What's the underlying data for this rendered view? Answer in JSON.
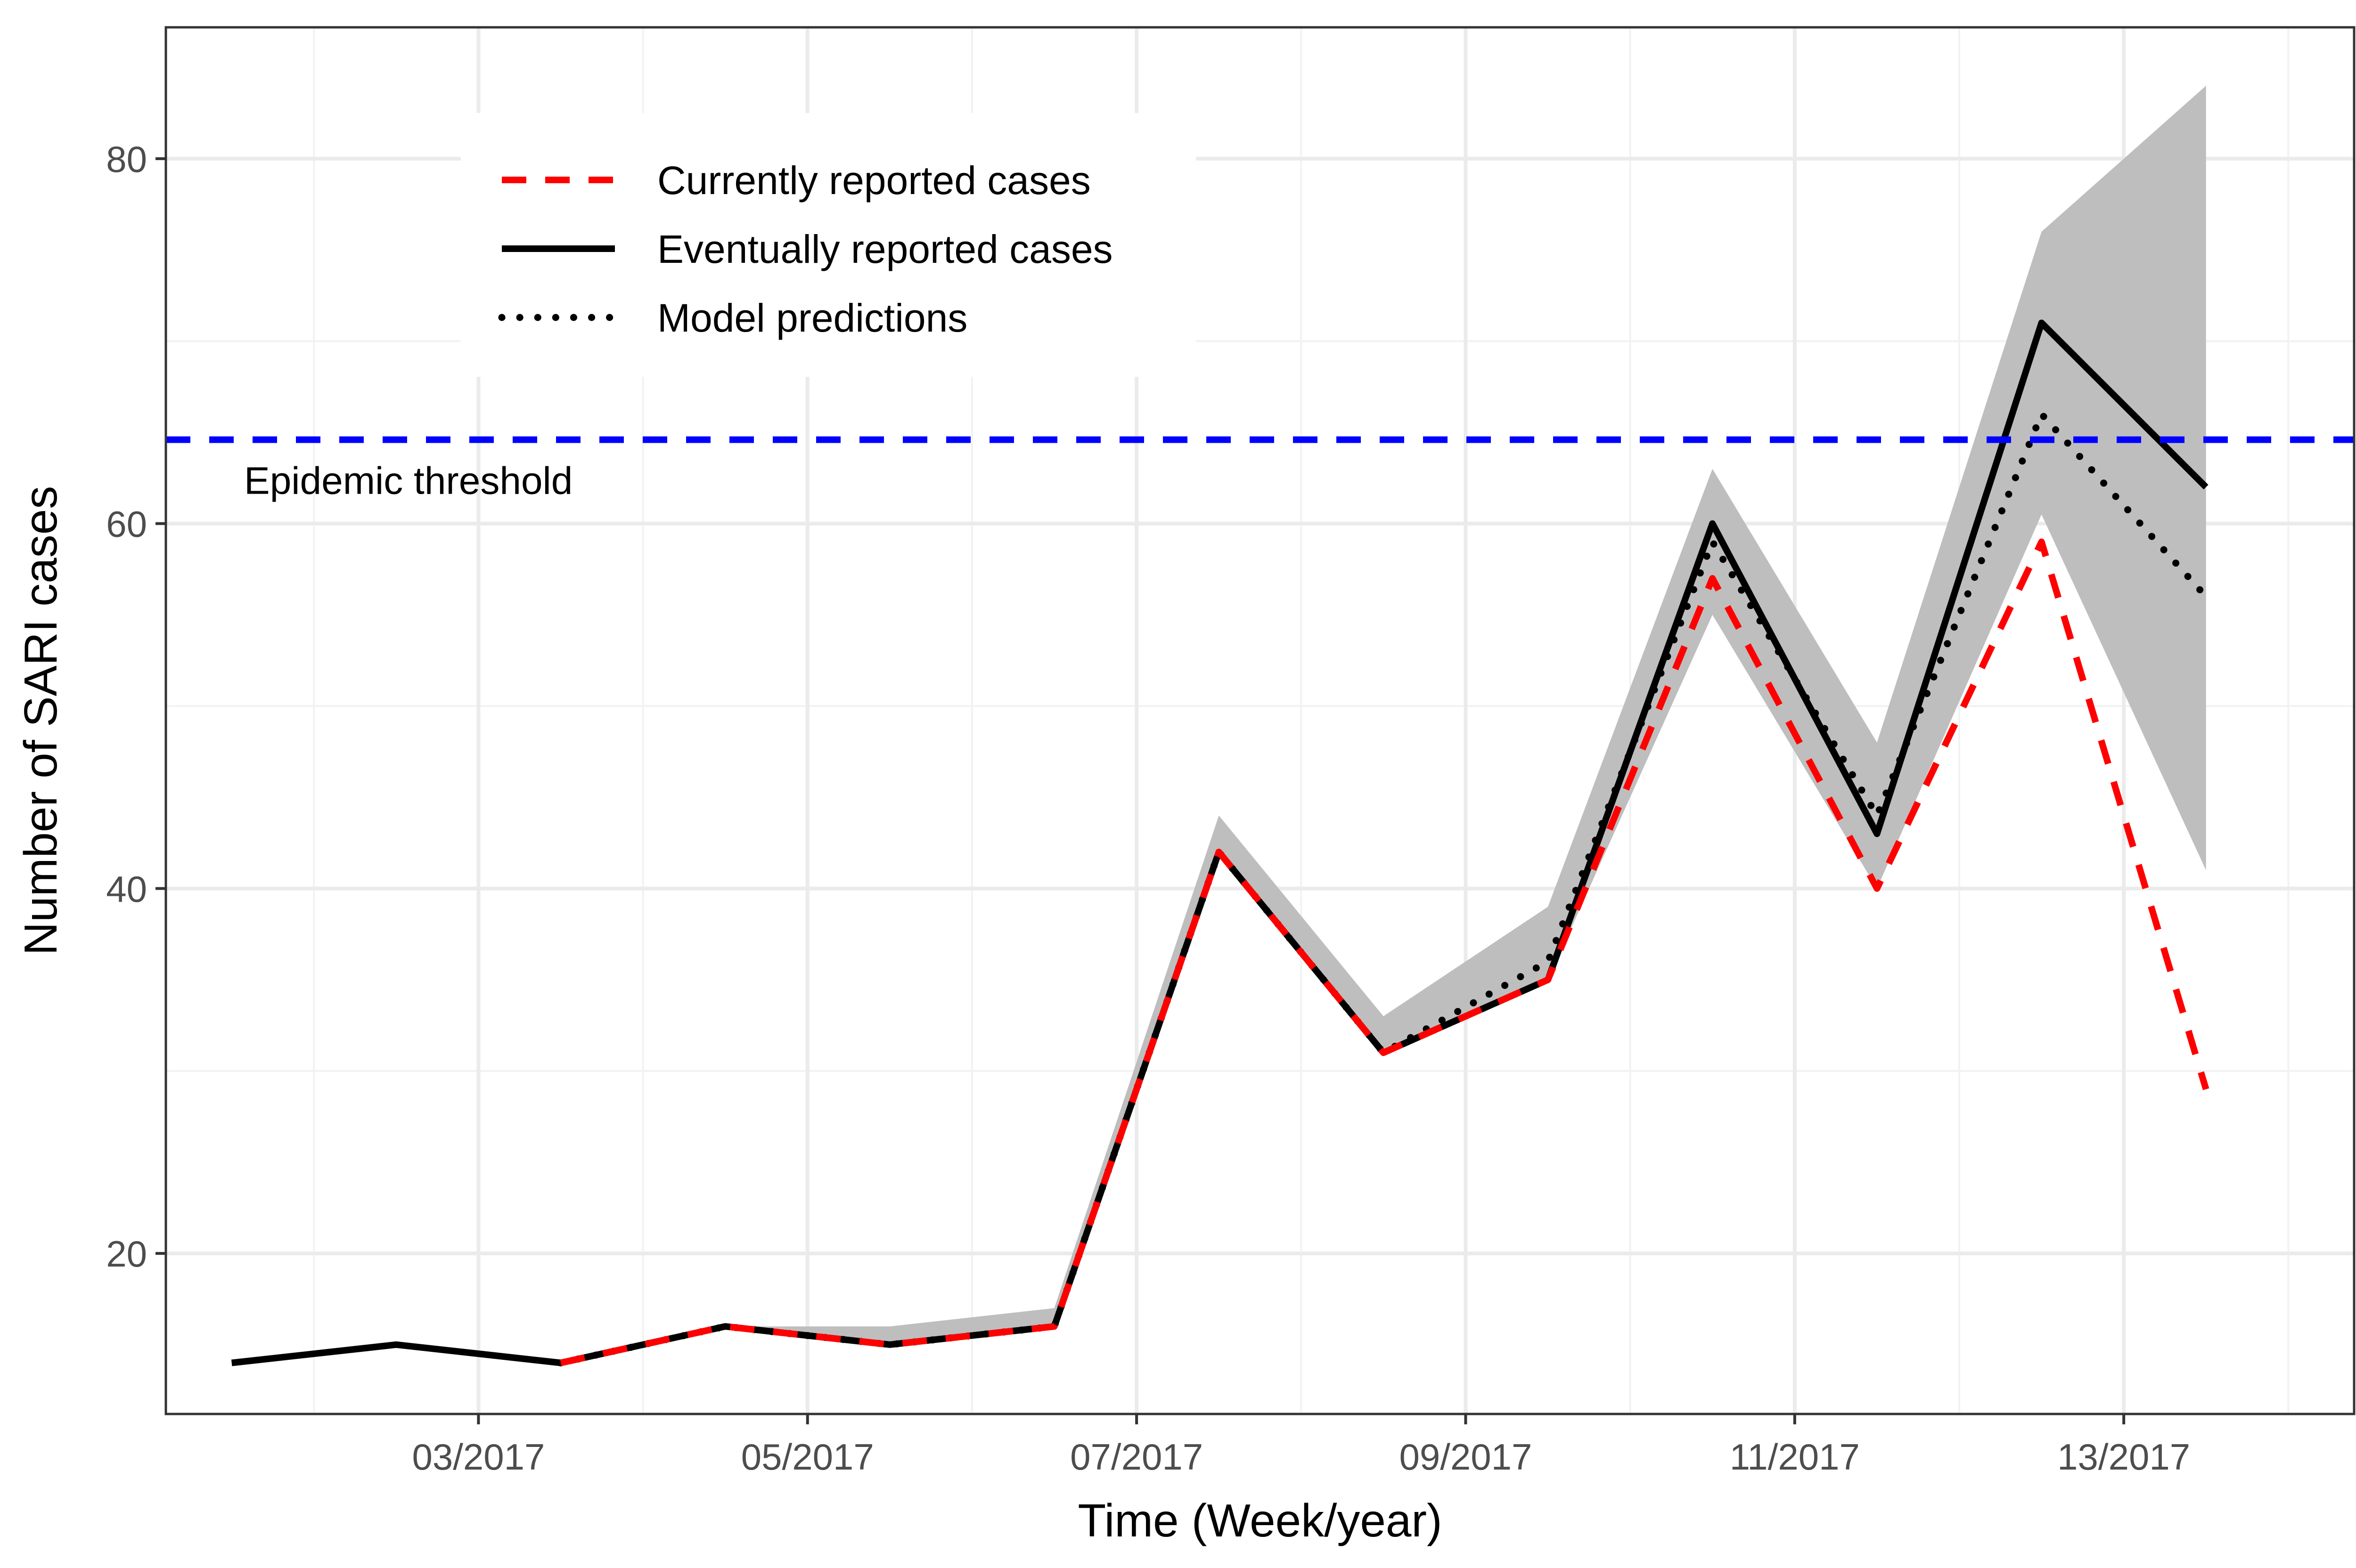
{
  "chart_data": {
    "type": "line",
    "xlabel": "Time (Week/year)",
    "ylabel": "Number of SARI cases",
    "x": [
      1.5,
      2.5,
      3.5,
      4.5,
      5.5,
      6.5,
      7.5,
      8.5,
      9.5,
      10.5,
      11.5,
      12.5,
      13.5
    ],
    "xlim": [
      1.1,
      14.4
    ],
    "ylim": [
      11.2,
      87.2
    ],
    "x_ticks": [
      {
        "x": 3,
        "label": "03/2017"
      },
      {
        "x": 5,
        "label": "05/2017"
      },
      {
        "x": 7,
        "label": "07/2017"
      },
      {
        "x": 9,
        "label": "09/2017"
      },
      {
        "x": 11,
        "label": "11/2017"
      },
      {
        "x": 13,
        "label": "13/2017"
      }
    ],
    "x_minor_ticks": [
      2,
      4,
      6,
      8,
      10,
      12,
      14
    ],
    "y_ticks": [
      20,
      40,
      60,
      80
    ],
    "y_minor_ticks": [
      30,
      50,
      70
    ],
    "grid": true,
    "series": [
      {
        "name": "Currently reported cases",
        "color": "#ff0000",
        "style": "dashed",
        "values": [
          null,
          null,
          14,
          16,
          15,
          16,
          42,
          31,
          35,
          57,
          40,
          59,
          29
        ]
      },
      {
        "name": "Eventually reported cases",
        "color": "#000000",
        "style": "solid",
        "values": [
          14,
          15,
          14,
          16,
          15,
          16,
          42,
          31,
          35,
          60,
          43,
          71,
          62
        ]
      },
      {
        "name": "Model predictions",
        "color": "#000000",
        "style": "dotted",
        "values": [
          null,
          null,
          14,
          16,
          15,
          16,
          42,
          31,
          36,
          59,
          44,
          66,
          56
        ]
      }
    ],
    "prediction_interval": {
      "color": "#bebebe",
      "lower": [
        null,
        null,
        14,
        16,
        15,
        16,
        42,
        31,
        35,
        55,
        40,
        60.5,
        41
      ],
      "upper": [
        null,
        null,
        14,
        16,
        16,
        17,
        44,
        33,
        39,
        63,
        48,
        76,
        84
      ]
    },
    "threshold": {
      "value": 64.6,
      "label": "Epidemic threshold",
      "color": "#0000ff",
      "style": "dashed"
    },
    "legend": {
      "placement": "top-left",
      "entries": [
        {
          "label": "Currently reported cases",
          "color": "#ff0000",
          "style": "dashed"
        },
        {
          "label": "Eventually reported cases",
          "color": "#000000",
          "style": "solid"
        },
        {
          "label": "Model predictions",
          "color": "#000000",
          "style": "dotted"
        }
      ]
    }
  }
}
